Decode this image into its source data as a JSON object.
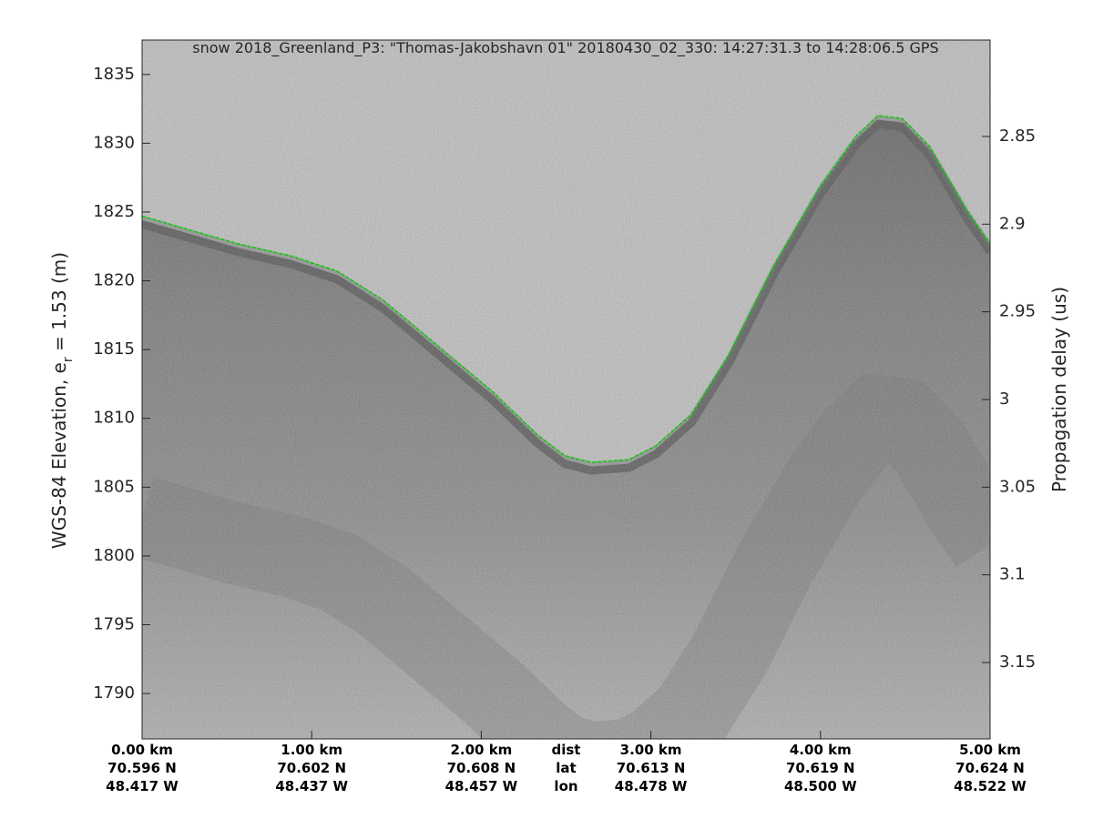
{
  "chart_data": {
    "type": "line",
    "title": "snow 2018_Greenland_P3: \"Thomas-Jakobshavn 01\"  20180430_02_330: 14:27:31.3 to 14:28:06.5 GPS",
    "ylabel": [
      "WGS-84 Elevation, e",
      "r",
      " = 1.53 (m)"
    ],
    "y2label": "Propagation delay (us)",
    "color": "#00d000",
    "x": [
      0,
      0.56,
      0.88,
      1.15,
      1.42,
      1.74,
      2.06,
      2.33,
      2.49,
      2.65,
      2.87,
      3.03,
      3.24,
      3.46,
      3.73,
      4.0,
      4.21,
      4.34,
      4.48,
      4.64,
      4.86,
      5.0
    ],
    "values": [
      1824.7,
      1822.7,
      1821.8,
      1820.7,
      1818.6,
      1815.3,
      1812.0,
      1808.8,
      1807.3,
      1806.8,
      1807.0,
      1808.0,
      1810.3,
      1814.6,
      1821.2,
      1826.9,
      1830.5,
      1832.0,
      1831.8,
      1829.8,
      1825.2,
      1822.7
    ],
    "xlim": [
      0,
      5
    ],
    "xticks": [
      {
        "value": 0,
        "label": "0.00 km"
      },
      {
        "value": 1,
        "label": "1.00 km"
      },
      {
        "value": 2,
        "label": "2.00 km"
      },
      {
        "value": 3,
        "label": "3.00 km"
      },
      {
        "value": 4,
        "label": "4.00 km"
      },
      {
        "value": 5,
        "label": "5.00 km"
      }
    ],
    "lat_labels": [
      "70.596 N",
      "70.602 N",
      "70.608 N",
      "70.613 N",
      "70.619 N",
      "70.624 N"
    ],
    "lon_labels": [
      "48.417 W",
      "48.437 W",
      "48.457 W",
      "48.478 W",
      "48.500 W",
      "48.522 W"
    ],
    "row_names": [
      "dist",
      "lat",
      "lon"
    ],
    "row_names_x": 2.5,
    "ylim": [
      1786.7,
      1837.5
    ],
    "yticks": [
      1790,
      1795,
      1800,
      1805,
      1810,
      1815,
      1820,
      1825,
      1830,
      1835
    ],
    "y2lim": [
      3.1936,
      2.795
    ],
    "y2ticks": [
      2.85,
      2.9,
      2.95,
      3,
      3.05,
      3.1,
      3.15
    ]
  }
}
